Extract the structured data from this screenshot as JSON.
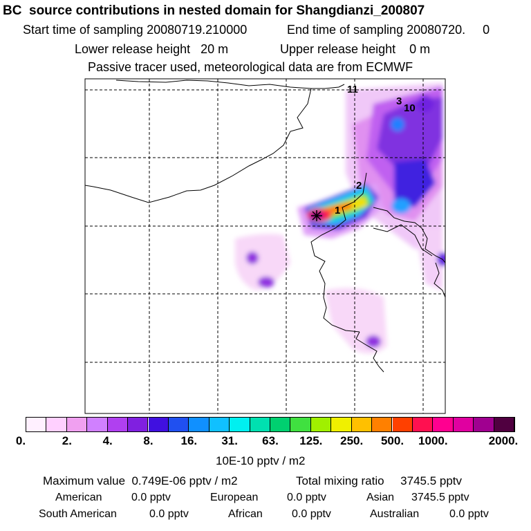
{
  "header": {
    "title": "BC  source contributions in nested domain for Shangdianzi_200807",
    "start_label": "Start time of sampling 20080719.210000",
    "end_label": "End time of sampling 20080720.     0",
    "lower_label": "Lower release height   20 m",
    "upper_label": "Upper release height    0 m",
    "tracer_note": "Passive tracer used, meteorological data are from ECMWF"
  },
  "map": {
    "markers": [
      "1",
      "2",
      "3",
      "10",
      "11"
    ]
  },
  "colorbar": {
    "ticks": [
      "0.",
      "2.",
      "4.",
      "8.",
      "16.",
      "31.",
      "63.",
      "125.",
      "250.",
      "500.",
      "1000.",
      "2000."
    ],
    "unit": "10E-10 pptv / m2",
    "colors": [
      "#fff0ff",
      "#ffd0ff",
      "#f0a0f0",
      "#d080ff",
      "#b040f0",
      "#8020e0",
      "#4010e0",
      "#2050f0",
      "#1090ff",
      "#10c0ff",
      "#00f0f0",
      "#00e0b0",
      "#00d070",
      "#40e040",
      "#a0f000",
      "#f0f000",
      "#ffc000",
      "#ff8000",
      "#ff4000",
      "#ff1050",
      "#ff0090",
      "#e000a0",
      "#a00090",
      "#500040"
    ]
  },
  "stats": {
    "max_label": "Maximum value  0.749E-06 pptv / m2",
    "total_label": "Total mixing ratio     3745.5 pptv",
    "american_label": "American",
    "american_value": "0.0 pptv",
    "european_label": "European",
    "european_value": "0.0 pptv",
    "asian_label": "Asian",
    "asian_value": "3745.5 pptv",
    "south_american_label": "South American",
    "south_american_value": "0.0 pptv",
    "african_label": "African",
    "african_value": "0.0 pptv",
    "australian_label": "Australian",
    "australian_value": "0.0 pptv"
  }
}
